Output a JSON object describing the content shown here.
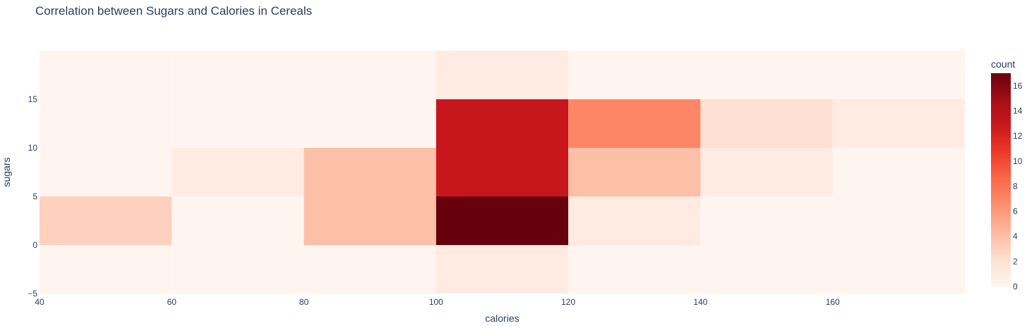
{
  "chart_data": {
    "type": "heatmap",
    "title": "Correlation between Sugars and Calories in Cereals",
    "xlabel": "calories",
    "ylabel": "sugars",
    "xlim": [
      40,
      180
    ],
    "ylim": [
      -5,
      20
    ],
    "x_bins": [
      40,
      60,
      80,
      100,
      120,
      140,
      160,
      180
    ],
    "y_bins": [
      -5,
      0,
      5,
      10,
      15,
      20
    ],
    "x_ticks": [
      40,
      60,
      80,
      100,
      120,
      140,
      160
    ],
    "y_ticks": [
      -5,
      0,
      5,
      10,
      15
    ],
    "counts": [
      [
        0,
        0,
        0,
        1,
        0,
        0,
        0
      ],
      [
        3,
        0,
        4,
        17,
        1,
        0,
        0
      ],
      [
        0,
        1,
        4,
        13,
        4,
        1,
        0
      ],
      [
        0,
        0,
        0,
        13,
        7,
        2,
        1
      ],
      [
        0,
        0,
        0,
        1,
        0,
        0,
        0
      ]
    ],
    "colorbar": {
      "title": "count",
      "min": 0,
      "max": 17,
      "ticks": [
        0,
        2,
        4,
        6,
        8,
        10,
        12,
        14,
        16
      ],
      "colorscale": [
        "#fff5f0",
        "#fee0d2",
        "#fcbba1",
        "#fc9272",
        "#fb6a4a",
        "#ef3b2c",
        "#cb181d",
        "#a50f15",
        "#67000d"
      ]
    }
  }
}
